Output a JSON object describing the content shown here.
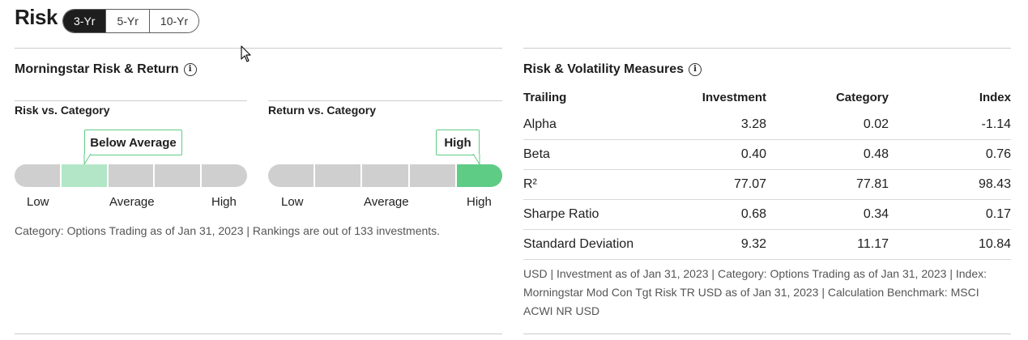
{
  "header": {
    "title": "Risk",
    "tabs": [
      {
        "label": "3-Yr",
        "active": true
      },
      {
        "label": "5-Yr",
        "active": false
      },
      {
        "label": "10-Yr",
        "active": false
      }
    ]
  },
  "risk_return": {
    "title": "Morningstar Risk & Return",
    "info_icon": "info-icon",
    "risk": {
      "title": "Risk vs. Category",
      "rating": "Below Average",
      "level_index": 1,
      "segments": 5,
      "scale": {
        "low": "Low",
        "mid": "Average",
        "high": "High"
      }
    },
    "return": {
      "title": "Return vs. Category",
      "rating": "High",
      "level_index": 4,
      "segments": 5,
      "scale": {
        "low": "Low",
        "mid": "Average",
        "high": "High"
      }
    },
    "note": "Category: Options Trading as of Jan 31, 2023 | Rankings are out of 133 investments."
  },
  "volatility": {
    "title": "Risk & Volatility Measures",
    "info_icon": "info-icon",
    "columns": [
      "Trailing",
      "Investment",
      "Category",
      "Index"
    ],
    "rows": [
      {
        "label": "Alpha",
        "investment": "3.28",
        "category": "0.02",
        "index": "-1.14"
      },
      {
        "label": "Beta",
        "investment": "0.40",
        "category": "0.48",
        "index": "0.76"
      },
      {
        "label": "R²",
        "investment": "77.07",
        "category": "77.81",
        "index": "98.43"
      },
      {
        "label": "Sharpe Ratio",
        "investment": "0.68",
        "category": "0.34",
        "index": "0.17"
      },
      {
        "label": "Standard Deviation",
        "investment": "9.32",
        "category": "11.17",
        "index": "10.84"
      }
    ],
    "footnote": "USD | Investment as of Jan 31, 2023 | Category: Options Trading as of Jan 31, 2023 | Index: Morningstar Mod Con Tgt Risk TR USD as of Jan 31, 2023 | Calculation Benchmark: MSCI ACWI NR USD"
  },
  "colors": {
    "highlight_light": "#b3e6c7",
    "highlight_strong": "#5fcc86",
    "segment_grey": "#cfcfcf",
    "active_tab": "#1e1e1e"
  }
}
